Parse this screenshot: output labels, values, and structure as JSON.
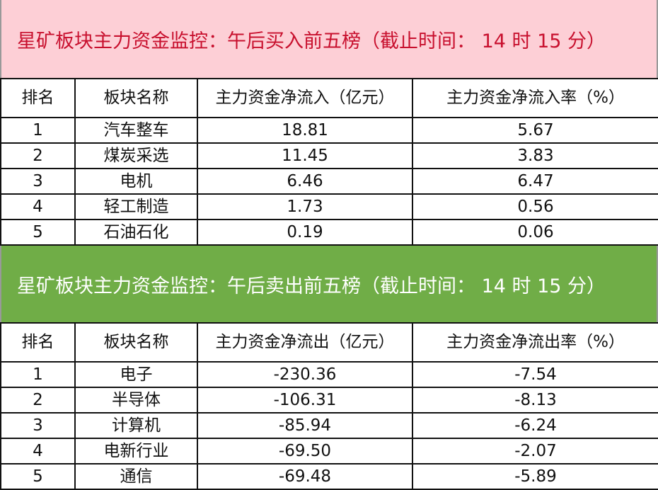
{
  "buy": {
    "title": "星矿板块主力资金监控：午后买入前五榜（截止时间： 14 时 15 分）",
    "headers": [
      "排名",
      "板块名称",
      "主力资金净流入（亿元）",
      "主力资金净流入率（%）"
    ],
    "rows": [
      [
        "1",
        "汽车整车",
        "18.81",
        "5.67"
      ],
      [
        "2",
        "煤炭采选",
        "11.45",
        "3.83"
      ],
      [
        "3",
        "电机",
        "6.46",
        "6.47"
      ],
      [
        "4",
        "轻工制造",
        "1.73",
        "0.56"
      ],
      [
        "5",
        "石油石化",
        "0.19",
        "0.06"
      ]
    ]
  },
  "sell": {
    "title": "星矿板块主力资金监控：午后卖出前五榜（截止时间： 14 时 15 分）",
    "headers": [
      "排名",
      "板块名称",
      "主力资金净流出（亿元）",
      "主力资金净流出率（%）"
    ],
    "rows": [
      [
        "1",
        "电子",
        "-230.36",
        "-7.54"
      ],
      [
        "2",
        "半导体",
        "-106.31",
        "-8.13"
      ],
      [
        "3",
        "计算机",
        "-85.94",
        "-6.24"
      ],
      [
        "4",
        "电新行业",
        "-69.50",
        "-2.07"
      ],
      [
        "5",
        "通信",
        "-69.48",
        "-5.89"
      ]
    ]
  },
  "colors": {
    "buy_banner": "#fdcfd6",
    "buy_text": "#c8102e",
    "sell_banner": "#70ad47"
  }
}
